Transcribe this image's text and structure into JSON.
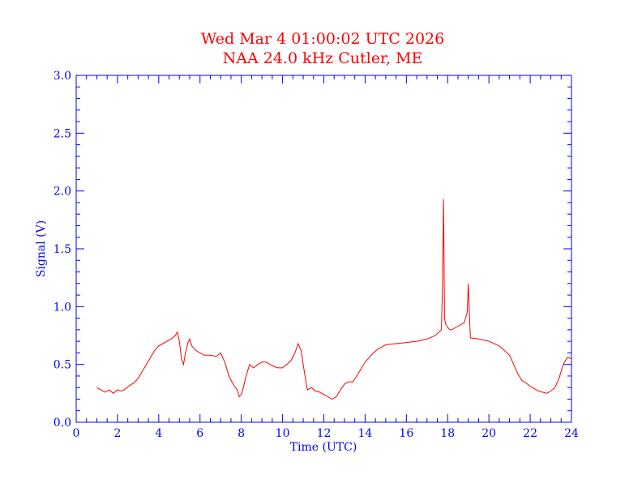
{
  "chart_data": {
    "type": "line",
    "title": "Wed Mar 4 01:00:02 UTC 2026",
    "subtitle": "NAA 24.0 kHz Cutler, ME",
    "xlabel": "Time (UTC)",
    "ylabel": "Signal (V)",
    "xlim": [
      0,
      24
    ],
    "ylim": [
      0,
      3
    ],
    "x_ticks": [
      "0",
      "2",
      "4",
      "6",
      "8",
      "10",
      "12",
      "14",
      "16",
      "18",
      "20",
      "22",
      "24"
    ],
    "y_ticks": [
      "0.0",
      "0.5",
      "1.0",
      "1.5",
      "2.0",
      "2.5",
      "3.0"
    ],
    "grid": false,
    "colors": {
      "axes": "#0000ff",
      "series": "#ff0000",
      "title": "#ff0000"
    },
    "series": [
      {
        "x": [
          1.0,
          1.2,
          1.4,
          1.6,
          1.8,
          2.0,
          2.2,
          2.4,
          2.6,
          2.8,
          3.0,
          3.2,
          3.4,
          3.6,
          3.8,
          4.0,
          4.2,
          4.4,
          4.6,
          4.8,
          4.9,
          5.0,
          5.1,
          5.2,
          5.3,
          5.4,
          5.5,
          5.6,
          5.8,
          6.0,
          6.2,
          6.5,
          6.8,
          7.0,
          7.2,
          7.4,
          7.6,
          7.8,
          7.9,
          8.0,
          8.1,
          8.2,
          8.4,
          8.6,
          8.8,
          9.0,
          9.2,
          9.4,
          9.6,
          9.8,
          10.0,
          10.2,
          10.4,
          10.6,
          10.75,
          10.9,
          11.0,
          11.2,
          11.4,
          11.6,
          11.8,
          12.0,
          12.2,
          12.4,
          12.6,
          12.8,
          13.0,
          13.2,
          13.4,
          13.6,
          13.8,
          14.0,
          14.2,
          14.4,
          14.6,
          14.8,
          15.0,
          15.5,
          16.0,
          16.5,
          17.0,
          17.4,
          17.7,
          17.75,
          17.8,
          17.85,
          17.9,
          18.0,
          18.1,
          18.2,
          18.4,
          18.6,
          18.8,
          18.95,
          19.0,
          19.05,
          19.1,
          19.5,
          20.0,
          20.5,
          21.0,
          21.2,
          21.4,
          21.6,
          21.8,
          22.0,
          22.2,
          22.4,
          22.6,
          22.8,
          23.0,
          23.2,
          23.4,
          23.6,
          23.8,
          24.0
        ],
        "y": [
          0.3,
          0.28,
          0.26,
          0.28,
          0.25,
          0.28,
          0.27,
          0.29,
          0.32,
          0.34,
          0.38,
          0.44,
          0.5,
          0.56,
          0.62,
          0.66,
          0.68,
          0.7,
          0.72,
          0.75,
          0.78,
          0.7,
          0.55,
          0.5,
          0.6,
          0.68,
          0.72,
          0.66,
          0.62,
          0.6,
          0.58,
          0.58,
          0.57,
          0.6,
          0.52,
          0.4,
          0.33,
          0.28,
          0.22,
          0.24,
          0.3,
          0.38,
          0.5,
          0.47,
          0.5,
          0.52,
          0.52,
          0.5,
          0.48,
          0.47,
          0.47,
          0.5,
          0.53,
          0.6,
          0.68,
          0.62,
          0.5,
          0.28,
          0.3,
          0.27,
          0.26,
          0.24,
          0.22,
          0.2,
          0.22,
          0.28,
          0.33,
          0.35,
          0.35,
          0.4,
          0.46,
          0.52,
          0.56,
          0.6,
          0.63,
          0.65,
          0.67,
          0.68,
          0.69,
          0.7,
          0.72,
          0.75,
          0.8,
          1.2,
          1.93,
          0.9,
          0.85,
          0.82,
          0.8,
          0.8,
          0.82,
          0.84,
          0.86,
          0.95,
          1.2,
          0.95,
          0.73,
          0.72,
          0.7,
          0.66,
          0.58,
          0.5,
          0.42,
          0.36,
          0.34,
          0.31,
          0.29,
          0.27,
          0.26,
          0.25,
          0.27,
          0.3,
          0.38,
          0.5,
          0.56,
          0.55
        ]
      }
    ]
  }
}
